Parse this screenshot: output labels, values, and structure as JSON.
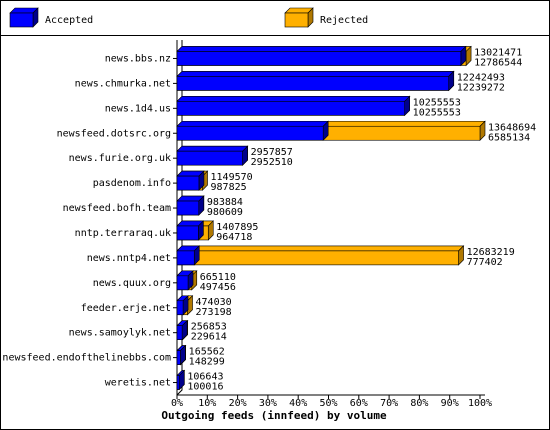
{
  "chart_data": {
    "type": "bar",
    "orientation": "horizontal",
    "title": "Outgoing feeds (innfeed) by volume",
    "categories": [
      "news.bbs.nz",
      "news.chmurka.net",
      "news.1d4.us",
      "newsfeed.dotsrc.org",
      "news.furie.org.uk",
      "pasdenom.info",
      "newsfeed.bofh.team",
      "nntp.terraraq.uk",
      "news.nntp4.net",
      "news.quux.org",
      "feeder.erje.net",
      "news.samoylyk.net",
      "newsfeed.endofthelinebbs.com",
      "weretis.net"
    ],
    "series": [
      {
        "name": "Accepted",
        "color": "#0000ff",
        "values": [
          12786544,
          12239272,
          10255553,
          6585134,
          2952510,
          987825,
          980609,
          964718,
          777402,
          497456,
          273198,
          229614,
          148299,
          100016
        ]
      },
      {
        "name": "Rejected",
        "color": "#ffb000",
        "values": [
          13021471,
          12242493,
          10255553,
          13648694,
          2957857,
          1149570,
          983884,
          1407895,
          12683219,
          665110,
          474030,
          256853,
          165562,
          106643
        ]
      }
    ],
    "xlim": [
      0,
      13648694
    ],
    "xticks": [
      {
        "value": 0,
        "label": "0%"
      },
      {
        "value": 1364869.4,
        "label": "10%"
      },
      {
        "value": 2729738.8,
        "label": "20%"
      },
      {
        "value": 4094608.2,
        "label": "30%"
      },
      {
        "value": 5459477.6,
        "label": "40%"
      },
      {
        "value": 6824347,
        "label": "50%"
      },
      {
        "value": 8189216.4,
        "label": "60%"
      },
      {
        "value": 9554085.8,
        "label": "70%"
      },
      {
        "value": 10918955.2,
        "label": "80%"
      },
      {
        "value": 12283824.6,
        "label": "90%"
      },
      {
        "value": 13648694,
        "label": "100%"
      }
    ]
  }
}
